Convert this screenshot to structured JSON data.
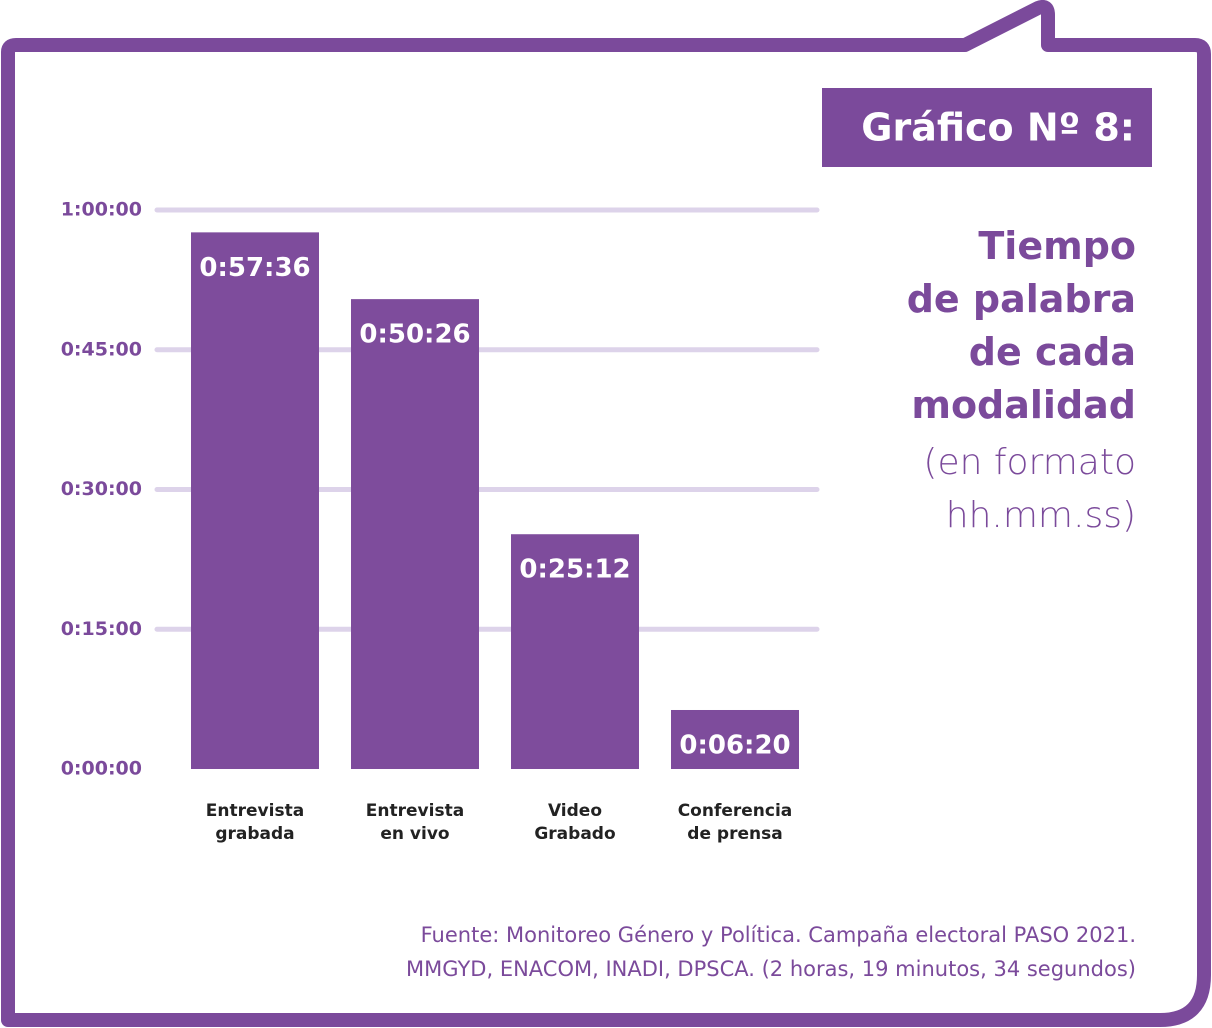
{
  "chart_data": {
    "type": "bar",
    "heading": "Gráfico Nº 8:",
    "title": "Tiempo\nde palabra\nde cada\nmodalidad",
    "subtitle": "(en formato\nhh.mm.ss)",
    "source": "Fuente: Monitoreo Género y Política. Campaña electoral PASO 2021.\nMMGYD, ENACOM, INADI, DPSCA. (2 horas, 19 minutos, 34 segundos)",
    "categories": [
      "Entrevista\ngrabada",
      "Entrevista\nen vivo",
      "Video\nGrabado",
      "Conferencia\nde prensa"
    ],
    "values": [
      3456,
      3026,
      1512,
      380
    ],
    "value_labels": [
      "0:57:36",
      "0:50:26",
      "0:25:12",
      "0:06:20"
    ],
    "color": "#7e4c9c",
    "ylim": [
      0,
      3600
    ],
    "yticks": [
      {
        "value": 0,
        "label": "0:00:00"
      },
      {
        "value": 900,
        "label": "0:15:00"
      },
      {
        "value": 1800,
        "label": "0:30:00"
      },
      {
        "value": 2700,
        "label": "0:45:00"
      },
      {
        "value": 3600,
        "label": "1:00:00"
      }
    ],
    "grid": true
  }
}
